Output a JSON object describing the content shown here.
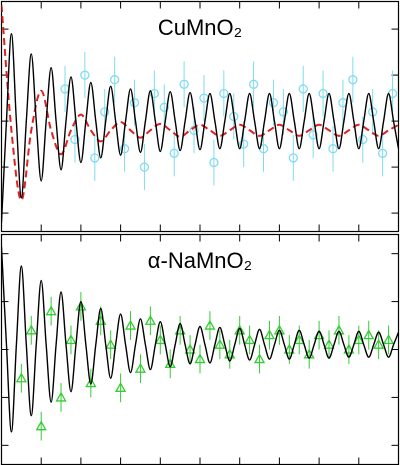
{
  "chart_data": [
    {
      "type": "line",
      "title": "CuMnO₂",
      "xlim": [
        0,
        10
      ],
      "ylim": [
        -1.2,
        1.3
      ],
      "xticks": [
        0,
        1,
        2,
        3,
        4,
        5,
        6,
        7,
        8,
        9,
        10
      ],
      "yticks": [
        -1,
        -0.5,
        0,
        0.5,
        1
      ],
      "series": [
        {
          "type": "scatter",
          "marker": "circle",
          "color": "#7fdcee",
          "error": 0.25,
          "x": [
            1.6,
            1.85,
            2.1,
            2.35,
            2.6,
            2.85,
            3.1,
            3.35,
            3.6,
            3.85,
            4.1,
            4.35,
            4.6,
            4.85,
            5.1,
            5.35,
            5.6,
            5.85,
            6.1,
            6.35,
            6.6,
            6.85,
            7.1,
            7.35,
            7.6,
            7.85,
            8.1,
            8.35,
            8.6,
            8.85,
            9.1,
            9.35,
            9.6,
            9.85
          ],
          "values": [
            0.35,
            -0.2,
            0.5,
            -0.4,
            0.1,
            0.45,
            -0.3,
            0.2,
            -0.5,
            0.3,
            0.15,
            -0.35,
            0.4,
            -0.1,
            0.25,
            -0.45,
            0.3,
            0.05,
            -0.25,
            0.4,
            -0.3,
            0.2,
            0.1,
            -0.4,
            0.35,
            -0.15,
            0.3,
            -0.3,
            0.2,
            0.45,
            -0.2,
            0.1,
            -0.35,
            0.3
          ]
        },
        {
          "type": "line",
          "color": "#dd2222",
          "dashed": true,
          "x": [
            0,
            0.25,
            0.5,
            0.75,
            1,
            1.25,
            1.5,
            1.75,
            2,
            2.25,
            2.5,
            2.75,
            3,
            3.25,
            3.5,
            3.75,
            4,
            4.25,
            4.5,
            4.75,
            5,
            5.25,
            5.5,
            5.75,
            6,
            6.25,
            6.5,
            6.75,
            7,
            7.25,
            7.5,
            7.75,
            8,
            8.25,
            8.5,
            8.75,
            9,
            9.25,
            9.5,
            9.75,
            10
          ],
          "values": [
            1.26,
            -0.1,
            -0.86,
            -0.1,
            0.33,
            -0.1,
            -0.36,
            -0.1,
            0.07,
            -0.1,
            -0.22,
            -0.1,
            -0.01,
            -0.1,
            -0.18,
            -0.1,
            -0.03,
            -0.1,
            -0.17,
            -0.1,
            -0.04,
            -0.1,
            -0.16,
            -0.1,
            -0.04,
            -0.1,
            -0.16,
            -0.1,
            -0.04,
            -0.1,
            -0.16,
            -0.1,
            -0.04,
            -0.1,
            -0.16,
            -0.1,
            -0.04,
            -0.1,
            -0.16,
            -0.1,
            -0.04
          ]
        },
        {
          "type": "line",
          "color": "#000000",
          "x": [
            0,
            0.125,
            0.25,
            0.375,
            0.5,
            0.625,
            0.75,
            0.875,
            1,
            1.125,
            1.25,
            1.375,
            1.5,
            1.625,
            1.75,
            1.875,
            2,
            2.125,
            2.25,
            2.375,
            2.5,
            2.625,
            2.75,
            2.875,
            3,
            3.125,
            3.25,
            3.375,
            3.5,
            3.625,
            3.75,
            3.875,
            4,
            4.125,
            4.25,
            4.375,
            4.5,
            4.625,
            4.75,
            4.875,
            5,
            5.125,
            5.25,
            5.375,
            5.5,
            5.625,
            5.75,
            5.875,
            6,
            6.125,
            6.25,
            6.375,
            6.5,
            6.625,
            6.75,
            6.875,
            7,
            7.125,
            7.25,
            7.375,
            7.5,
            7.625,
            7.75,
            7.875,
            8,
            8.125,
            8.25,
            8.375,
            8.5,
            8.625,
            8.75,
            8.875,
            9,
            9.125,
            9.25,
            9.375,
            9.5,
            9.625,
            9.75,
            9.875,
            10
          ],
          "values": [
            -1.1,
            0,
            0.95,
            0,
            -0.83,
            0,
            0.73,
            0,
            -0.65,
            0,
            0.58,
            0,
            -0.53,
            0,
            0.48,
            0,
            -0.45,
            0,
            0.42,
            0,
            -0.4,
            0,
            0.38,
            0,
            -0.37,
            0,
            0.35,
            0,
            -0.34,
            0,
            0.33,
            0,
            -0.33,
            0,
            0.32,
            0,
            -0.32,
            0,
            0.31,
            0,
            -0.31,
            0,
            0.3,
            0,
            -0.3,
            0,
            0.3,
            0,
            -0.3,
            0,
            0.3,
            0,
            -0.3,
            0,
            0.3,
            0,
            -0.3,
            0,
            0.3,
            0,
            -0.3,
            0,
            0.3,
            0,
            -0.3,
            0,
            0.3,
            0,
            -0.3,
            0,
            0.3,
            0,
            -0.3,
            0,
            0.3,
            0,
            -0.3,
            0,
            0.3,
            0,
            -0.3
          ]
        }
      ]
    },
    {
      "type": "line",
      "title": "α-NaMnO₂",
      "xlim": [
        0,
        10
      ],
      "ylim": [
        -1.2,
        1.2
      ],
      "xticks": [
        0,
        1,
        2,
        3,
        4,
        5,
        6,
        7,
        8,
        9,
        10
      ],
      "yticks": [
        -1,
        -0.5,
        0,
        0.5,
        1
      ],
      "series": [
        {
          "type": "scatter",
          "marker": "triangle",
          "color": "#33cc33",
          "error": 0.15,
          "x": [
            0.5,
            0.75,
            1,
            1.25,
            1.5,
            1.75,
            2,
            2.25,
            2.5,
            2.75,
            3,
            3.25,
            3.5,
            3.75,
            4,
            4.25,
            4.5,
            4.75,
            5,
            5.25,
            5.5,
            5.75,
            6,
            6.25,
            6.5,
            6.75,
            7,
            7.25,
            7.5,
            7.75,
            8,
            8.25,
            8.5,
            8.75,
            9,
            9.25,
            9.5,
            9.75
          ],
          "values": [
            -0.3,
            0.2,
            -0.8,
            0.4,
            -0.5,
            0.1,
            0.45,
            -0.35,
            0.3,
            0.05,
            -0.4,
            0.25,
            -0.2,
            0.3,
            0.1,
            -0.15,
            0.2,
            0.0,
            -0.1,
            0.25,
            0.05,
            -0.05,
            0.2,
            0.1,
            -0.1,
            0.15,
            0.2,
            0.0,
            0.1,
            -0.05,
            0.15,
            0.05,
            0.2,
            0.0,
            0.1,
            0.15,
            0.05,
            0.1
          ]
        },
        {
          "type": "line",
          "color": "#000000",
          "x": [
            0,
            0.125,
            0.25,
            0.375,
            0.5,
            0.625,
            0.75,
            0.875,
            1,
            1.125,
            1.25,
            1.375,
            1.5,
            1.625,
            1.75,
            1.875,
            2,
            2.125,
            2.25,
            2.375,
            2.5,
            2.625,
            2.75,
            2.875,
            3,
            3.125,
            3.25,
            3.375,
            3.5,
            3.625,
            3.75,
            3.875,
            4,
            4.125,
            4.25,
            4.375,
            4.5,
            4.625,
            4.75,
            4.875,
            5,
            5.125,
            5.25,
            5.375,
            5.5,
            5.625,
            5.75,
            5.875,
            6,
            6.125,
            6.25,
            6.375,
            6.5,
            6.625,
            6.75,
            6.875,
            7,
            7.125,
            7.25,
            7.375,
            7.5,
            7.625,
            7.75,
            7.875,
            8,
            8.125,
            8.25,
            8.375,
            8.5,
            8.625,
            8.75,
            8.875,
            9,
            9.125,
            9.25,
            9.375,
            9.5,
            9.625,
            9.75,
            9.875,
            10
          ],
          "values": [
            1.07,
            0.05,
            -0.86,
            0.05,
            0.87,
            0.05,
            -0.69,
            0.05,
            0.72,
            0.05,
            -0.55,
            0.05,
            0.6,
            0.05,
            -0.44,
            0.05,
            0.5,
            0.05,
            -0.36,
            0.05,
            0.43,
            0.05,
            -0.3,
            0.05,
            0.37,
            0.05,
            -0.24,
            0.05,
            0.32,
            0.05,
            -0.21,
            0.05,
            0.29,
            0.05,
            -0.18,
            0.05,
            0.27,
            0.05,
            -0.15,
            0.05,
            0.24,
            0.05,
            -0.14,
            0.05,
            0.23,
            0.05,
            -0.12,
            0.05,
            0.22,
            0.05,
            -0.11,
            0.05,
            0.21,
            0.05,
            -0.1,
            0.05,
            0.2,
            0.05,
            -0.1,
            0.05,
            0.2,
            0.05,
            -0.09,
            0.05,
            0.19,
            0.05,
            -0.09,
            0.05,
            0.19,
            0.05,
            -0.08,
            0.05,
            0.19,
            0.05,
            -0.08,
            0.05,
            0.18,
            0.05,
            -0.08,
            0.05,
            0.18
          ]
        }
      ]
    }
  ]
}
